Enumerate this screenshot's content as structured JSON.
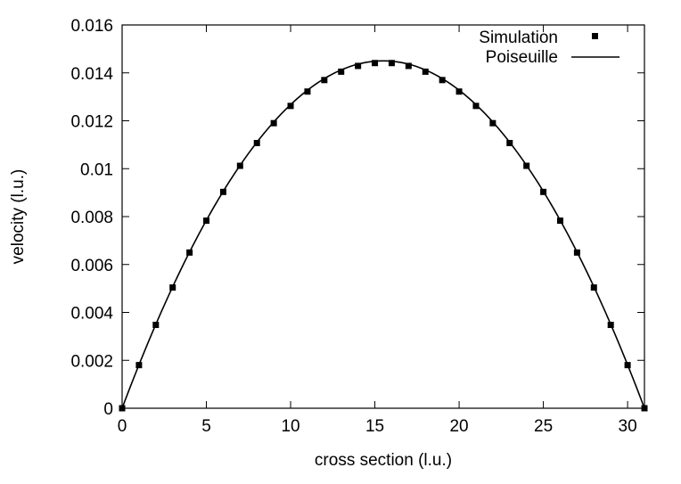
{
  "chart_data": {
    "type": "line",
    "xlabel": "cross section (l.u.)",
    "ylabel": "velocity (l.u.)",
    "xlim": [
      0,
      31
    ],
    "ylim": [
      0,
      0.016
    ],
    "x_ticks": [
      "0",
      "5",
      "10",
      "15",
      "20",
      "25",
      "30"
    ],
    "y_ticks": [
      "0",
      "0.002",
      "0.004",
      "0.006",
      "0.008",
      "0.01",
      "0.012",
      "0.014",
      "0.016"
    ],
    "grid": false,
    "legend_position": "top-right",
    "series": [
      {
        "name": "Simulation",
        "style": "markers",
        "marker": "square",
        "x": [
          0,
          1,
          2,
          3,
          4,
          5,
          6,
          7,
          8,
          9,
          10,
          11,
          12,
          13,
          14,
          15,
          16,
          17,
          18,
          19,
          20,
          21,
          22,
          23,
          24,
          25,
          26,
          27,
          28,
          29,
          30,
          31
        ],
        "y": [
          0,
          0.0018,
          0.00348,
          0.00504,
          0.0065,
          0.00783,
          0.00903,
          0.01012,
          0.01107,
          0.0119,
          0.01262,
          0.01322,
          0.0137,
          0.01405,
          0.01429,
          0.01441,
          0.01441,
          0.01429,
          0.01405,
          0.0137,
          0.01322,
          0.01262,
          0.0119,
          0.01107,
          0.01012,
          0.00903,
          0.00783,
          0.0065,
          0.00504,
          0.00348,
          0.0018,
          0
        ]
      },
      {
        "name": "Poiseuille",
        "style": "line",
        "formula": "u(x) = u_max * 4 * x * (31 - x) / 31^2",
        "u_max": 0.0145,
        "x_range": [
          0,
          31
        ]
      }
    ]
  },
  "colors": {
    "axis": "#000000",
    "series": "#000000",
    "background": "#ffffff"
  }
}
